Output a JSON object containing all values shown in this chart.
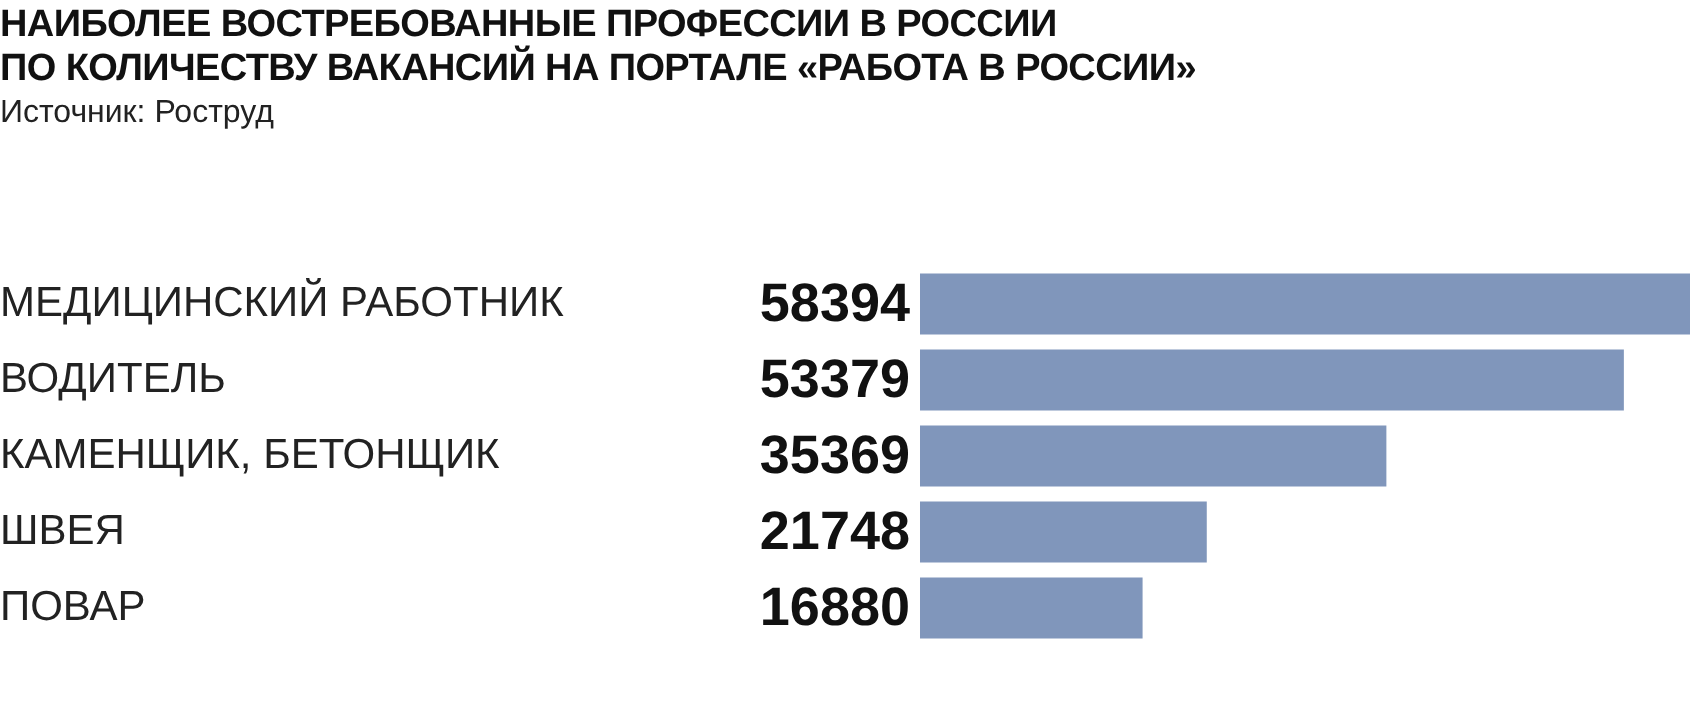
{
  "chart_data": {
    "type": "bar",
    "orientation": "horizontal",
    "title": "НАИБОЛЕЕ ВОСТРЕБОВАННЫЕ ПРОФЕССИИ В РОССИИ\nПО КОЛИЧЕСТВУ ВАКАНСИЙ НА ПОРТАЛЕ «РАБОТА В РОССИИ»",
    "annotations": [
      "Источник: Роструд"
    ],
    "categories": [
      "МЕДИЦИНСКИЙ РАБОТНИК",
      "ВОДИТЕЛЬ",
      "КАМЕНЩИК, БЕТОНЩИК",
      "ШВЕЯ",
      "ПОВАР"
    ],
    "values": [
      58394,
      53379,
      35369,
      21748,
      16880
    ],
    "color": "#8096bb",
    "data_labels": true
  }
}
